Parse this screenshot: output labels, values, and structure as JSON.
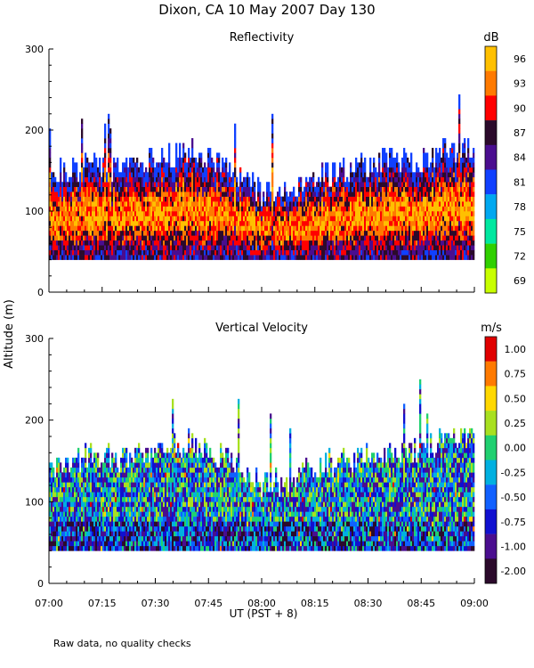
{
  "figure": {
    "title": "Dixon, CA 10 May 2007  Day 130",
    "ylabel": "Altitude (m)",
    "xlabel": "UT  (PST + 8)",
    "footnote": "Raw data, no quality checks"
  },
  "chart_data": [
    {
      "type": "heatmap",
      "title": "Reflectivity",
      "units": "dB",
      "ylim": [
        0,
        300
      ],
      "yticks": [
        "300",
        "200",
        "100",
        "0"
      ],
      "xlim_minutes": [
        0,
        120
      ],
      "xticks": [
        "07:00",
        "07:15",
        "07:30",
        "07:45",
        "08:00",
        "08:15",
        "08:30",
        "08:45",
        "09:00"
      ],
      "colorbar_labels": [
        "96",
        "93",
        "90",
        "87",
        "84",
        "81",
        "78",
        "75",
        "72",
        "69"
      ],
      "colorbar_colors": [
        "#ffc000",
        "#ff7a00",
        "#ff0000",
        "#2b0a2b",
        "#4a0d8f",
        "#1040ff",
        "#00a8f0",
        "#00e8a0",
        "#30d000",
        "#c8ff00"
      ],
      "data_min_altitude": 40,
      "echo_top_profile": [
        [
          0,
          140
        ],
        [
          10,
          155
        ],
        [
          20,
          150
        ],
        [
          30,
          160
        ],
        [
          40,
          170
        ],
        [
          50,
          150
        ],
        [
          60,
          120
        ],
        [
          65,
          120
        ],
        [
          75,
          140
        ],
        [
          85,
          150
        ],
        [
          95,
          160
        ],
        [
          105,
          160
        ],
        [
          115,
          175
        ],
        [
          120,
          180
        ]
      ]
    },
    {
      "type": "heatmap",
      "title": "Vertical Velocity",
      "units": "m/s",
      "ylim": [
        0,
        300
      ],
      "yticks": [
        "300",
        "200",
        "100",
        "0"
      ],
      "xlim_minutes": [
        0,
        120
      ],
      "xticks": [
        "07:00",
        "07:15",
        "07:30",
        "07:45",
        "08:00",
        "08:15",
        "08:30",
        "08:45",
        "09:00"
      ],
      "colorbar_labels": [
        "1.00",
        "0.75",
        "0.50",
        "0.25",
        "0.00",
        "-0.25",
        "-0.50",
        "-0.75",
        "-1.00",
        "-2.00"
      ],
      "colorbar_colors": [
        "#e00000",
        "#ff7a00",
        "#ffd800",
        "#a8e020",
        "#20d070",
        "#00b0e0",
        "#1060ff",
        "#1010d0",
        "#4a0d8f",
        "#2b0a2b"
      ],
      "data_min_altitude": 40,
      "echo_top_profile": [
        [
          0,
          140
        ],
        [
          10,
          155
        ],
        [
          20,
          150
        ],
        [
          30,
          160
        ],
        [
          40,
          170
        ],
        [
          50,
          150
        ],
        [
          60,
          120
        ],
        [
          65,
          120
        ],
        [
          75,
          140
        ],
        [
          85,
          150
        ],
        [
          95,
          160
        ],
        [
          105,
          160
        ],
        [
          115,
          175
        ],
        [
          120,
          180
        ]
      ]
    }
  ]
}
